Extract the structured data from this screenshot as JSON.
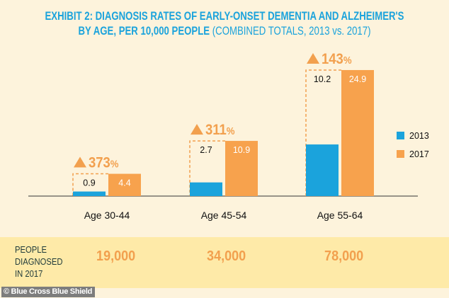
{
  "title_line1": "EXHIBIT 2: DIAGNOSIS RATES OF EARLY-ONSET DEMENTIA AND ALZHEIMER'S",
  "title_line2_bold": "BY AGE, PER 10,000 PEOPLE",
  "title_line2_light": "(COMBINED TOTALS, 2013 vs. 2017)",
  "colors": {
    "2013": "#1ba3dc",
    "2017": "#f7a24d",
    "accent_triangle": "#f2a04e",
    "band": "#feeaa8",
    "background": "#fdf3dc"
  },
  "chart_data": {
    "type": "bar",
    "categories": [
      "Age 30-44",
      "Age 45-54",
      "Age 55-64"
    ],
    "series": [
      {
        "name": "2013",
        "values": [
          0.9,
          2.7,
          10.2
        ]
      },
      {
        "name": "2017",
        "values": [
          4.4,
          10.9,
          24.9
        ]
      }
    ],
    "change_labels": [
      "373%",
      "311%",
      "143%"
    ],
    "legend_position": "right",
    "grid": false
  },
  "bottom_row": {
    "label_lines": [
      "PEOPLE",
      "DIAGNOSED",
      "IN 2017"
    ],
    "counts": [
      "19,000",
      "34,000",
      "78,000"
    ]
  },
  "credit": "© Blue Cross Blue Shield"
}
